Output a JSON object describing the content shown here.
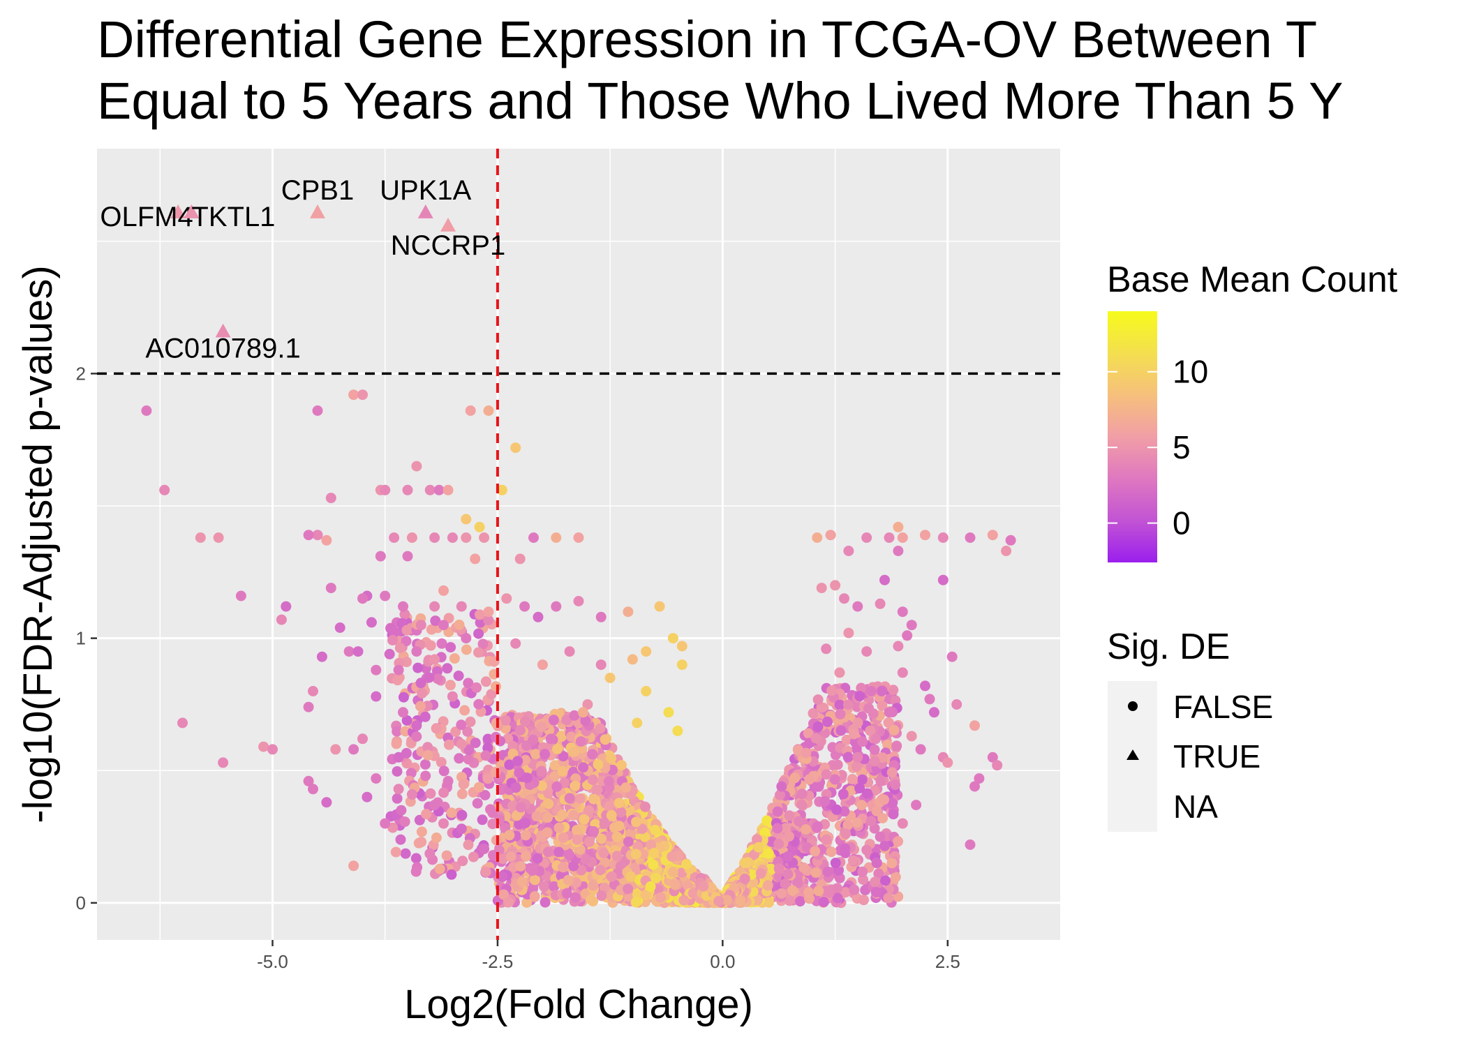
{
  "chart_data": {
    "type": "scatter",
    "title_lines": [
      "Differential Gene Expression in TCGA-OV Between T",
      "Equal to 5 Years and Those Who Lived More Than 5 Y"
    ],
    "xlabel": "Log2(Fold Change)",
    "ylabel": "-log10(FDR-Adjusted p-values)",
    "xlim": [
      -6.95,
      3.75
    ],
    "ylim": [
      -0.14,
      2.85
    ],
    "x_ticks": [
      -5.0,
      -2.5,
      0.0,
      2.5
    ],
    "x_tick_labels": [
      "-5.0",
      "-2.5",
      "0.0",
      "2.5"
    ],
    "y_ticks": [
      0,
      1,
      2
    ],
    "y_tick_labels": [
      "0",
      "1",
      "2"
    ],
    "grid": true,
    "thresholds": {
      "vertical_x": -2.5,
      "vertical_color": "#e8141a",
      "horizontal_y": 2.0,
      "horizontal_color": "#000000"
    },
    "colors": {
      "panel_background": "#ebebeb",
      "grid_major": "#ffffff",
      "colorbar": [
        "#9b1fed",
        "#c254d4",
        "#df78c0",
        "#f19ea6",
        "#f6c07c",
        "#f4df4f",
        "#f6fb1c"
      ]
    },
    "legend_position": "right",
    "color_legend": {
      "title": "Base Mean Count",
      "range": [
        -2.6,
        14
      ],
      "ticks": [
        0,
        5,
        10
      ],
      "tick_labels": [
        "0",
        "5",
        "10"
      ]
    },
    "shape_legend": {
      "title": "Sig. DE",
      "entries": [
        {
          "label": "FALSE",
          "shape": "circle"
        },
        {
          "label": "TRUE",
          "shape": "triangle"
        },
        {
          "label": "NA",
          "shape": "none"
        }
      ]
    },
    "significant_genes": [
      {
        "gene": "OLFM4",
        "x": -6.05,
        "y": 2.61,
        "base_mean": 5.2
      },
      {
        "gene": "TKTL1",
        "x": -5.9,
        "y": 2.61,
        "base_mean": 4.8
      },
      {
        "gene": "CPB1",
        "x": -4.5,
        "y": 2.61,
        "base_mean": 5.9
      },
      {
        "gene": "UPK1A",
        "x": -3.3,
        "y": 2.61,
        "base_mean": 3.9
      },
      {
        "gene": "NCCRP1",
        "x": -3.05,
        "y": 2.56,
        "base_mean": 5.6
      },
      {
        "gene": "AC010789.1",
        "x": -5.55,
        "y": 2.16,
        "base_mean": 4.4
      }
    ],
    "scatter_points": [
      {
        "x": -6.4,
        "y": 1.86,
        "c": 3
      },
      {
        "x": -6.2,
        "y": 1.56,
        "c": 4
      },
      {
        "x": -5.8,
        "y": 1.38,
        "c": 5
      },
      {
        "x": -5.6,
        "y": 1.38,
        "c": 5
      },
      {
        "x": -5.35,
        "y": 1.16,
        "c": 3
      },
      {
        "x": -6.0,
        "y": 0.68,
        "c": 4
      },
      {
        "x": -5.55,
        "y": 0.53,
        "c": 4
      },
      {
        "x": -5.1,
        "y": 0.59,
        "c": 5
      },
      {
        "x": -5.0,
        "y": 0.58,
        "c": 4
      },
      {
        "x": -4.85,
        "y": 1.12,
        "c": 2
      },
      {
        "x": -4.9,
        "y": 1.07,
        "c": 4
      },
      {
        "x": -4.5,
        "y": 1.86,
        "c": 3
      },
      {
        "x": -4.5,
        "y": 1.39,
        "c": 4
      },
      {
        "x": -4.4,
        "y": 1.37,
        "c": 6
      },
      {
        "x": -4.6,
        "y": 1.39,
        "c": 3
      },
      {
        "x": -4.35,
        "y": 1.53,
        "c": 4
      },
      {
        "x": -4.35,
        "y": 1.19,
        "c": 3
      },
      {
        "x": -4.25,
        "y": 1.04,
        "c": 2
      },
      {
        "x": -4.55,
        "y": 0.8,
        "c": 4
      },
      {
        "x": -4.6,
        "y": 0.74,
        "c": 3
      },
      {
        "x": -4.45,
        "y": 0.93,
        "c": 2
      },
      {
        "x": -4.6,
        "y": 0.46,
        "c": 3
      },
      {
        "x": -4.55,
        "y": 0.43,
        "c": 3
      },
      {
        "x": -4.4,
        "y": 0.38,
        "c": 2
      },
      {
        "x": -4.3,
        "y": 0.58,
        "c": 5
      },
      {
        "x": -4.1,
        "y": 1.92,
        "c": 6
      },
      {
        "x": -4.0,
        "y": 1.92,
        "c": 5
      },
      {
        "x": -3.8,
        "y": 1.56,
        "c": 5
      },
      {
        "x": -3.75,
        "y": 1.56,
        "c": 4
      },
      {
        "x": -3.65,
        "y": 1.38,
        "c": 4
      },
      {
        "x": -3.8,
        "y": 1.31,
        "c": 3
      },
      {
        "x": -3.95,
        "y": 1.16,
        "c": 2
      },
      {
        "x": -4.0,
        "y": 1.15,
        "c": 3
      },
      {
        "x": -3.75,
        "y": 1.16,
        "c": 3
      },
      {
        "x": -3.9,
        "y": 1.06,
        "c": 2
      },
      {
        "x": -4.15,
        "y": 0.95,
        "c": 3
      },
      {
        "x": -4.05,
        "y": 0.95,
        "c": 2
      },
      {
        "x": -3.85,
        "y": 0.88,
        "c": 3
      },
      {
        "x": -3.7,
        "y": 0.94,
        "c": 2
      },
      {
        "x": -3.85,
        "y": 0.78,
        "c": 2
      },
      {
        "x": -4.0,
        "y": 0.62,
        "c": 4
      },
      {
        "x": -4.1,
        "y": 0.58,
        "c": 3
      },
      {
        "x": -3.85,
        "y": 0.47,
        "c": 3
      },
      {
        "x": -3.95,
        "y": 0.4,
        "c": 2
      },
      {
        "x": -3.75,
        "y": 0.3,
        "c": 3
      },
      {
        "x": -4.1,
        "y": 0.14,
        "c": 6
      },
      {
        "x": -3.4,
        "y": 1.65,
        "c": 5
      },
      {
        "x": -3.5,
        "y": 1.56,
        "c": 4
      },
      {
        "x": -3.25,
        "y": 1.56,
        "c": 4
      },
      {
        "x": -3.15,
        "y": 1.56,
        "c": 3
      },
      {
        "x": -3.05,
        "y": 1.56,
        "c": 6
      },
      {
        "x": -3.45,
        "y": 1.38,
        "c": 5
      },
      {
        "x": -3.5,
        "y": 1.31,
        "c": 3
      },
      {
        "x": -3.2,
        "y": 1.38,
        "c": 4
      },
      {
        "x": -3.0,
        "y": 1.38,
        "c": 4
      },
      {
        "x": -2.85,
        "y": 1.38,
        "c": 5
      },
      {
        "x": -2.65,
        "y": 1.38,
        "c": 5
      },
      {
        "x": -2.75,
        "y": 1.3,
        "c": 6
      },
      {
        "x": -2.8,
        "y": 1.86,
        "c": 6
      },
      {
        "x": -2.6,
        "y": 1.86,
        "c": 7
      },
      {
        "x": -2.3,
        "y": 1.72,
        "c": 9
      },
      {
        "x": -2.45,
        "y": 1.56,
        "c": 10
      },
      {
        "x": -2.85,
        "y": 1.45,
        "c": 9
      },
      {
        "x": -2.7,
        "y": 1.42,
        "c": 10
      },
      {
        "x": -2.1,
        "y": 1.38,
        "c": 3
      },
      {
        "x": -1.85,
        "y": 1.38,
        "c": 7
      },
      {
        "x": -1.6,
        "y": 1.38,
        "c": 6
      },
      {
        "x": -2.25,
        "y": 1.3,
        "c": 5
      },
      {
        "x": -3.2,
        "y": 1.12,
        "c": 4
      },
      {
        "x": -3.55,
        "y": 1.12,
        "c": 3
      },
      {
        "x": -3.1,
        "y": 1.18,
        "c": 6
      },
      {
        "x": -2.9,
        "y": 1.12,
        "c": 4
      },
      {
        "x": -3.35,
        "y": 1.05,
        "c": 4
      },
      {
        "x": -3.1,
        "y": 1.05,
        "c": 3
      },
      {
        "x": -2.85,
        "y": 1.0,
        "c": 3
      },
      {
        "x": -2.6,
        "y": 1.1,
        "c": 6
      },
      {
        "x": -2.4,
        "y": 1.15,
        "c": 5
      },
      {
        "x": -2.2,
        "y": 1.12,
        "c": 3
      },
      {
        "x": -2.05,
        "y": 1.08,
        "c": 2
      },
      {
        "x": -1.85,
        "y": 1.12,
        "c": 3
      },
      {
        "x": -1.6,
        "y": 1.14,
        "c": 4
      },
      {
        "x": -1.35,
        "y": 1.08,
        "c": 3
      },
      {
        "x": -1.05,
        "y": 1.1,
        "c": 7
      },
      {
        "x": -0.7,
        "y": 1.12,
        "c": 9
      },
      {
        "x": -3.6,
        "y": 0.88,
        "c": 3
      },
      {
        "x": -3.4,
        "y": 0.95,
        "c": 3
      },
      {
        "x": -3.2,
        "y": 0.92,
        "c": 5
      },
      {
        "x": -3.55,
        "y": 0.72,
        "c": 3
      },
      {
        "x": -3.4,
        "y": 0.67,
        "c": 2
      },
      {
        "x": -3.6,
        "y": 0.55,
        "c": 2
      },
      {
        "x": -3.3,
        "y": 0.48,
        "c": 3
      },
      {
        "x": -3.45,
        "y": 0.41,
        "c": 4
      },
      {
        "x": -3.2,
        "y": 0.37,
        "c": 3
      },
      {
        "x": -3.0,
        "y": 0.78,
        "c": 4
      },
      {
        "x": -2.9,
        "y": 0.6,
        "c": 5
      },
      {
        "x": -3.05,
        "y": 0.46,
        "c": 3
      },
      {
        "x": -3.1,
        "y": 0.3,
        "c": 4
      },
      {
        "x": -2.9,
        "y": 0.28,
        "c": 2
      },
      {
        "x": -3.6,
        "y": 0.43,
        "c": 4
      },
      {
        "x": -2.55,
        "y": 0.18,
        "c": 3
      },
      {
        "x": -2.45,
        "y": 0.1,
        "c": 2
      },
      {
        "x": -1.35,
        "y": 0.9,
        "c": 4
      },
      {
        "x": -1.0,
        "y": 0.92,
        "c": 8
      },
      {
        "x": -0.55,
        "y": 1.0,
        "c": 10
      },
      {
        "x": -0.45,
        "y": 0.97,
        "c": 9
      },
      {
        "x": -0.85,
        "y": 0.95,
        "c": 9
      },
      {
        "x": -0.45,
        "y": 0.9,
        "c": 10
      },
      {
        "x": -0.6,
        "y": 0.72,
        "c": 11
      },
      {
        "x": -0.85,
        "y": 0.8,
        "c": 10
      },
      {
        "x": -1.25,
        "y": 0.85,
        "c": 9
      },
      {
        "x": -1.7,
        "y": 0.95,
        "c": 4
      },
      {
        "x": -2.3,
        "y": 0.98,
        "c": 4
      },
      {
        "x": -2.0,
        "y": 0.9,
        "c": 6
      },
      {
        "x": -1.5,
        "y": 0.75,
        "c": 5
      },
      {
        "x": -0.5,
        "y": 0.65,
        "c": 11
      },
      {
        "x": -0.95,
        "y": 0.68,
        "c": 10
      },
      {
        "x": -1.55,
        "y": 0.72,
        "c": 7
      },
      {
        "x": 1.05,
        "y": 1.38,
        "c": 7
      },
      {
        "x": 1.2,
        "y": 1.39,
        "c": 6
      },
      {
        "x": 1.6,
        "y": 1.38,
        "c": 4
      },
      {
        "x": 1.85,
        "y": 1.38,
        "c": 4
      },
      {
        "x": 1.95,
        "y": 1.42,
        "c": 7
      },
      {
        "x": 2.0,
        "y": 1.38,
        "c": 6
      },
      {
        "x": 2.25,
        "y": 1.39,
        "c": 6
      },
      {
        "x": 2.45,
        "y": 1.38,
        "c": 4
      },
      {
        "x": 2.75,
        "y": 1.38,
        "c": 3
      },
      {
        "x": 3.0,
        "y": 1.39,
        "c": 6
      },
      {
        "x": 3.2,
        "y": 1.37,
        "c": 3
      },
      {
        "x": 3.15,
        "y": 1.33,
        "c": 5
      },
      {
        "x": 1.4,
        "y": 1.33,
        "c": 4
      },
      {
        "x": 1.95,
        "y": 1.33,
        "c": 3
      },
      {
        "x": 1.8,
        "y": 1.22,
        "c": 2
      },
      {
        "x": 2.45,
        "y": 1.22,
        "c": 2
      },
      {
        "x": 1.25,
        "y": 1.2,
        "c": 5
      },
      {
        "x": 1.1,
        "y": 1.19,
        "c": 5
      },
      {
        "x": 1.35,
        "y": 1.15,
        "c": 4
      },
      {
        "x": 1.5,
        "y": 1.12,
        "c": 3
      },
      {
        "x": 1.75,
        "y": 1.13,
        "c": 4
      },
      {
        "x": 2.0,
        "y": 1.1,
        "c": 3
      },
      {
        "x": 2.1,
        "y": 1.05,
        "c": 3
      },
      {
        "x": 1.95,
        "y": 0.97,
        "c": 4
      },
      {
        "x": 2.05,
        "y": 1.01,
        "c": 3
      },
      {
        "x": 1.4,
        "y": 1.02,
        "c": 5
      },
      {
        "x": 1.6,
        "y": 0.95,
        "c": 4
      },
      {
        "x": 1.15,
        "y": 0.96,
        "c": 4
      },
      {
        "x": 2.55,
        "y": 0.93,
        "c": 3
      },
      {
        "x": 2.0,
        "y": 0.87,
        "c": 4
      },
      {
        "x": 1.3,
        "y": 0.87,
        "c": 5
      },
      {
        "x": 1.65,
        "y": 0.8,
        "c": 3
      },
      {
        "x": 2.3,
        "y": 0.77,
        "c": 3
      },
      {
        "x": 2.35,
        "y": 0.72,
        "c": 2
      },
      {
        "x": 2.25,
        "y": 0.82,
        "c": 2
      },
      {
        "x": 2.8,
        "y": 0.67,
        "c": 6
      },
      {
        "x": 2.6,
        "y": 0.75,
        "c": 4
      },
      {
        "x": 2.45,
        "y": 0.55,
        "c": 4
      },
      {
        "x": 2.5,
        "y": 0.53,
        "c": 5
      },
      {
        "x": 2.85,
        "y": 0.47,
        "c": 3
      },
      {
        "x": 2.8,
        "y": 0.44,
        "c": 3
      },
      {
        "x": 3.0,
        "y": 0.55,
        "c": 3
      },
      {
        "x": 3.05,
        "y": 0.52,
        "c": 4
      },
      {
        "x": 2.2,
        "y": 0.58,
        "c": 3
      },
      {
        "x": 2.1,
        "y": 0.63,
        "c": 5
      },
      {
        "x": 2.75,
        "y": 0.22,
        "c": 3
      },
      {
        "x": 2.15,
        "y": 0.37,
        "c": 3
      },
      {
        "x": 2.0,
        "y": 0.3,
        "c": 4
      },
      {
        "x": 1.75,
        "y": 0.25,
        "c": 3
      },
      {
        "x": 1.6,
        "y": 0.2,
        "c": 4
      },
      {
        "x": 1.45,
        "y": 0.16,
        "c": 5
      },
      {
        "x": 1.7,
        "y": 0.62,
        "c": 4
      },
      {
        "x": 1.85,
        "y": 0.72,
        "c": 3
      },
      {
        "x": 1.5,
        "y": 0.55,
        "c": 4
      }
    ],
    "cluster_model": {
      "note": "dense clusters follow the volcano envelope",
      "left": {
        "x_range": [
          -2.5,
          -0.05
        ],
        "y_max": 0.72,
        "count": 1900
      },
      "right": {
        "x_range": [
          0.05,
          1.95
        ],
        "y_max": 0.82,
        "count": 1000
      },
      "left_sparse": {
        "x_range": [
          -3.7,
          -2.5
        ],
        "y_max": 1.0,
        "count": 260
      }
    }
  }
}
